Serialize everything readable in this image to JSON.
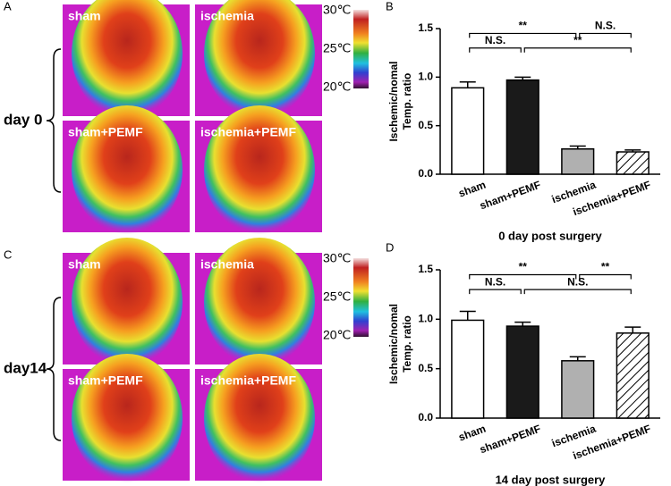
{
  "panels": [
    {
      "letter": "A",
      "row_label": "day 0",
      "images": [
        "sham",
        "ischemia",
        "sham+PEMF",
        "ischemia+PEMF"
      ],
      "scale": [
        "30℃",
        "25℃",
        "20℃"
      ]
    },
    {
      "letter": "C",
      "row_label": "day14",
      "images": [
        "sham",
        "ischemia",
        "sham+PEMF",
        "ischemia+PEMF"
      ],
      "scale": [
        "30℃",
        "25℃",
        "20℃"
      ]
    }
  ],
  "chart_data": [
    {
      "type": "bar",
      "panel_label": "B",
      "ylabel": [
        "Ischemic/nomal",
        "Temp. ratio"
      ],
      "xlabel": "0 day post surgery",
      "categories": [
        "sham",
        "sham+PEMF",
        "ischemia",
        "ischemia+PEMF"
      ],
      "values": [
        0.89,
        0.97,
        0.26,
        0.23
      ],
      "errors": [
        0.06,
        0.03,
        0.03,
        0.02
      ],
      "colors": [
        "#ffffff",
        "#1a1a1a",
        "#b0b0b0",
        "#ffffff"
      ],
      "hatch": [
        false,
        false,
        false,
        true
      ],
      "ylim": [
        0,
        1.5
      ],
      "yticks": [
        {
          "value": 0,
          "label": "0.0"
        },
        0.5,
        {
          "value": 1,
          "label": "1.0"
        },
        1.5
      ],
      "annotations": [
        {
          "from": "sham",
          "to": "ischemia",
          "y": 1.45,
          "label": "**"
        },
        {
          "from": "ischemia",
          "to": "ischemia+PEMF",
          "y": 1.45,
          "label": "N.S."
        },
        {
          "from": "sham",
          "to": "sham+PEMF",
          "y": 1.3,
          "label": "N.S."
        },
        {
          "from": "sham+PEMF",
          "to": "ischemia+PEMF",
          "y": 1.3,
          "label": "**"
        }
      ]
    },
    {
      "type": "bar",
      "panel_label": "D",
      "ylabel": [
        "Ischemic/nomal",
        "Temp. ratio"
      ],
      "xlabel": "14 day post surgery",
      "categories": [
        "sham",
        "sham+PEMF",
        "ischemia",
        "ischemia+PEMF"
      ],
      "values": [
        0.99,
        0.93,
        0.58,
        0.86
      ],
      "errors": [
        0.09,
        0.04,
        0.04,
        0.06
      ],
      "colors": [
        "#ffffff",
        "#1a1a1a",
        "#b0b0b0",
        "#ffffff"
      ],
      "hatch": [
        false,
        false,
        false,
        true
      ],
      "ylim": [
        0,
        1.5
      ],
      "yticks": [
        {
          "value": 0,
          "label": "0.0"
        },
        0.5,
        {
          "value": 1,
          "label": "1.0"
        },
        1.5
      ],
      "annotations": [
        {
          "from": "sham",
          "to": "ischemia",
          "y": 1.45,
          "label": "**"
        },
        {
          "from": "ischemia",
          "to": "ischemia+PEMF",
          "y": 1.45,
          "label": "**"
        },
        {
          "from": "sham",
          "to": "sham+PEMF",
          "y": 1.3,
          "label": "N.S."
        },
        {
          "from": "sham+PEMF",
          "to": "ischemia+PEMF",
          "y": 1.3,
          "label": "N.S."
        }
      ]
    }
  ]
}
